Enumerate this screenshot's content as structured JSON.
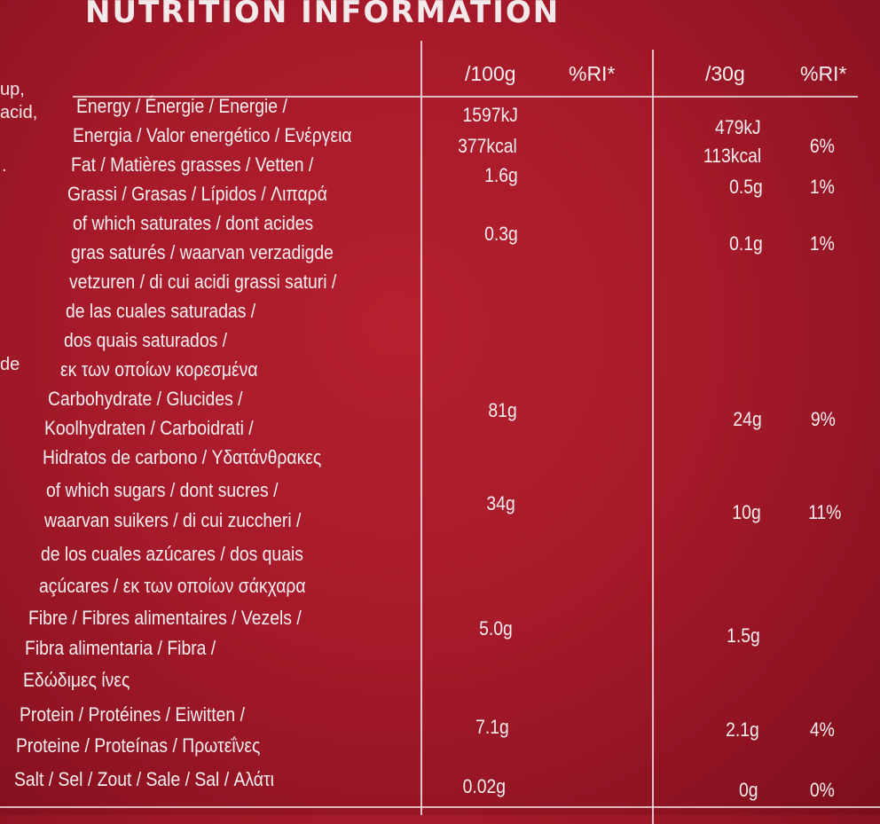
{
  "title": "NUTRITION INFORMATION",
  "left_margin_fragments": [
    "up,",
    "acid,",
    ".",
    "de"
  ],
  "headers": {
    "per100": "/100g",
    "ri100": "%RI*",
    "per30": "/30g",
    "ri30": "%RI*"
  },
  "label_lines": [
    "Energy / Énergie / Energie /",
    "Energia / Valor energético / Ενέργεια",
    "Fat / Matières grasses / Vetten /",
    "Grassi / Grasas / Lípidos / Λιπαρά",
    "of which saturates / dont acides",
    "gras saturés / waarvan verzadigde",
    "vetzuren / di cui acidi grassi saturi /",
    "de las cuales saturadas /",
    "dos quais saturados /",
    "εκ των οποίων κορεσμένα",
    "Carbohydrate / Glucides /",
    "Koolhydraten / Carboidrati /",
    "Hidratos de carbono / Υδατάνθρακες",
    "of which sugars / dont sucres /",
    "waarvan suikers / di cui zuccheri /",
    "de los cuales azúcares / dos quais",
    "açúcares / εκ των οποίων σάκχαρα",
    "Fibre / Fibres alimentaires / Vezels /",
    "Fibra alimentaria / Fibra /",
    "Εδώδιμες ίνες",
    "Protein / Protéines / Eiwitten /",
    "Proteine / Proteínas / Πρωτεΐνες",
    "Salt / Sel / Zout / Sale / Sal / Αλάτι"
  ],
  "values": {
    "energy_kj_100": "1597kJ",
    "energy_kcal_100": "377kcal",
    "energy_kj_30": "479kJ",
    "energy_kcal_30": "113kcal",
    "energy_ri": "6%",
    "fat_100": "1.6g",
    "fat_30": "0.5g",
    "fat_ri": "1%",
    "sat_100": "0.3g",
    "sat_30": "0.1g",
    "sat_ri": "1%",
    "carb_100": "81g",
    "carb_30": "24g",
    "carb_ri": "9%",
    "sugar_100": "34g",
    "sugar_30": "10g",
    "sugar_ri": "11%",
    "fibre_100": "5.0g",
    "fibre_30": "1.5g",
    "protein_100": "7.1g",
    "protein_30": "2.1g",
    "protein_ri": "4%",
    "salt_100": "0.02g",
    "salt_30": "0g",
    "salt_ri": "0%"
  }
}
